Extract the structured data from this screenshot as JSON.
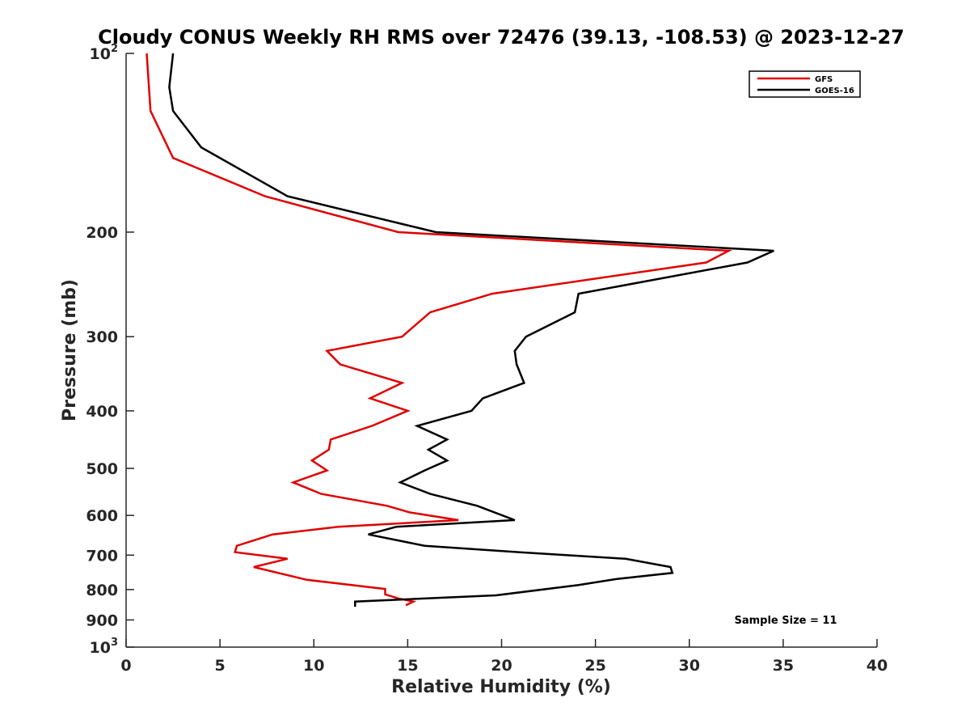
{
  "chart_data": {
    "type": "line",
    "title": "Cloudy CONUS Weekly RH RMS over 72476 (39.13, -108.53) @ 2023-12-27",
    "xlabel": "Relative Humidity (%)",
    "ylabel": "Pressure (mb)",
    "xlim": [
      0,
      40
    ],
    "ylim": [
      100,
      1000
    ],
    "y_scale": "log",
    "y_reversed": true,
    "x_ticks": [
      0,
      5,
      10,
      15,
      20,
      25,
      30,
      35,
      40
    ],
    "x_tick_labels": [
      "0",
      "5",
      "10",
      "15",
      "20",
      "25",
      "30",
      "35",
      "40"
    ],
    "y_ticks": [
      100,
      200,
      300,
      400,
      500,
      600,
      700,
      800,
      900,
      1000
    ],
    "y_tick_labels": [
      {
        "base": "10",
        "exp": "2"
      },
      {
        "base": "200",
        "exp": ""
      },
      {
        "base": "300",
        "exp": ""
      },
      {
        "base": "400",
        "exp": ""
      },
      {
        "base": "500",
        "exp": ""
      },
      {
        "base": "600",
        "exp": ""
      },
      {
        "base": "700",
        "exp": ""
      },
      {
        "base": "800",
        "exp": ""
      },
      {
        "base": "900",
        "exp": ""
      },
      {
        "base": "10",
        "exp": "3"
      }
    ],
    "grid": false,
    "legend_position": "top-right",
    "annotation": "Sample Size = 11",
    "series": [
      {
        "name": "GFS",
        "color": "#e00000",
        "points": [
          [
            1.1,
            100
          ],
          [
            1.3,
            125
          ],
          [
            2.5,
            150
          ],
          [
            7.4,
            174
          ],
          [
            14.5,
            200
          ],
          [
            32.1,
            215
          ],
          [
            30.9,
            225
          ],
          [
            19.5,
            254
          ],
          [
            16.2,
            273
          ],
          [
            14.7,
            300
          ],
          [
            10.7,
            317
          ],
          [
            11.4,
            334
          ],
          [
            14.7,
            359
          ],
          [
            13,
            381
          ],
          [
            15,
            400
          ],
          [
            13.1,
            424
          ],
          [
            10.9,
            447
          ],
          [
            10.8,
            465
          ],
          [
            9.9,
            485
          ],
          [
            10.7,
            504
          ],
          [
            8.9,
            528
          ],
          [
            10.4,
            552
          ],
          [
            13.9,
            578
          ],
          [
            15.1,
            593
          ],
          [
            17.7,
            611
          ],
          [
            11.3,
            627
          ],
          [
            7.8,
            646
          ],
          [
            5.9,
            675
          ],
          [
            5.8,
            692
          ],
          [
            8.6,
            710
          ],
          [
            6.8,
            733
          ],
          [
            9.6,
            770
          ],
          [
            13.8,
            798
          ],
          [
            13.8,
            815
          ],
          [
            14.5,
            828
          ],
          [
            15.3,
            838
          ],
          [
            14.9,
            850
          ]
        ]
      },
      {
        "name": "GOES-16",
        "color": "#000000",
        "points": [
          [
            2.5,
            100
          ],
          [
            2.3,
            114
          ],
          [
            2.5,
            125
          ],
          [
            4,
            144
          ],
          [
            8.6,
            174
          ],
          [
            16.5,
            200
          ],
          [
            34.5,
            215
          ],
          [
            33.1,
            225
          ],
          [
            24.1,
            254
          ],
          [
            23.9,
            273
          ],
          [
            21.3,
            300
          ],
          [
            20.7,
            317
          ],
          [
            20.8,
            334
          ],
          [
            21.2,
            359
          ],
          [
            19,
            381
          ],
          [
            18.4,
            400
          ],
          [
            15.5,
            424
          ],
          [
            17.1,
            447
          ],
          [
            16.1,
            465
          ],
          [
            17.1,
            485
          ],
          [
            15.9,
            504
          ],
          [
            14.6,
            528
          ],
          [
            16.2,
            552
          ],
          [
            18.7,
            578
          ],
          [
            20.7,
            611
          ],
          [
            14.4,
            627
          ],
          [
            12.9,
            646
          ],
          [
            15.9,
            675
          ],
          [
            20.9,
            692
          ],
          [
            26.6,
            710
          ],
          [
            29,
            733
          ],
          [
            29.1,
            750
          ],
          [
            26.1,
            768
          ],
          [
            24.1,
            786
          ],
          [
            19.7,
            818
          ],
          [
            12.2,
            838
          ],
          [
            12.2,
            855
          ]
        ]
      }
    ]
  }
}
